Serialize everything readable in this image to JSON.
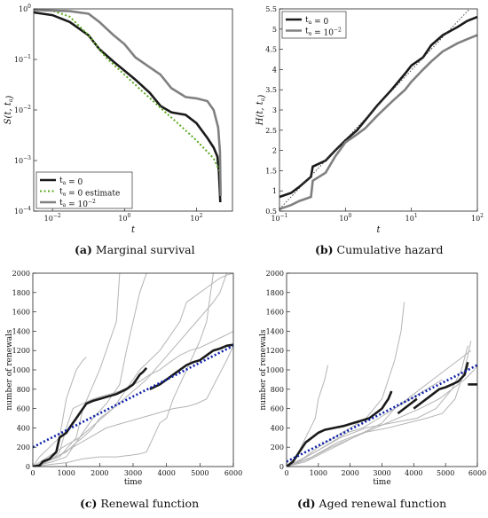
{
  "captions": {
    "a": {
      "letter": "(a)",
      "text": " Marginal survival"
    },
    "b": {
      "letter": "(b)",
      "text": " Cumulative hazard"
    },
    "c": {
      "letter": "(c)",
      "text": " Renewal function"
    },
    "d": {
      "letter": "(d)",
      "text": " Aged renewal function"
    }
  },
  "colors": {
    "black": "#1a1a1a",
    "gray": "#808080",
    "green": "#5aaa1e",
    "blue": "#0a1ea8",
    "light": "#b4b4b4"
  },
  "chart_data": [
    {
      "id": "a",
      "type": "line",
      "xlabel": "t",
      "ylabel": "S(t, t_a)",
      "xscale": "log",
      "yscale": "log",
      "xlim": [
        0.003,
        1000
      ],
      "ylim": [
        0.0001,
        1
      ],
      "xticks": [
        {
          "v": 0.01,
          "label": "10^-2"
        },
        {
          "v": 1,
          "label": "10^0"
        },
        {
          "v": 100,
          "label": "10^2"
        }
      ],
      "yticks": [
        {
          "v": 0.0001,
          "label": "10^-4"
        },
        {
          "v": 0.001,
          "label": "10^-3"
        },
        {
          "v": 0.01,
          "label": "10^-2"
        },
        {
          "v": 0.1,
          "label": "10^-1"
        },
        {
          "v": 1,
          "label": "10^0"
        }
      ],
      "legend_position": "bottom-left",
      "series": [
        {
          "name": "t_a = 0",
          "style": "black",
          "x": [
            0.003,
            0.01,
            0.03,
            0.1,
            0.2,
            0.5,
            1,
            2,
            5,
            10,
            20,
            50,
            100,
            200,
            300,
            380,
            420,
            460
          ],
          "y": [
            0.85,
            0.75,
            0.55,
            0.3,
            0.16,
            0.09,
            0.06,
            0.04,
            0.022,
            0.012,
            0.009,
            0.008,
            0.0055,
            0.0028,
            0.0018,
            0.0012,
            0.0006,
            0.00015
          ]
        },
        {
          "name": "t_a = 0 estimate",
          "style": "green-dotted",
          "x": [
            0.003,
            0.01,
            0.03,
            0.1,
            0.3,
            1,
            3,
            10,
            30,
            100,
            300,
            450
          ],
          "y": [
            0.95,
            0.92,
            0.7,
            0.3,
            0.11,
            0.05,
            0.024,
            0.011,
            0.0055,
            0.0025,
            0.0011,
            0.0006
          ]
        },
        {
          "name": "t_a = 10^-2",
          "style": "gray",
          "x": [
            0.003,
            0.03,
            0.1,
            0.2,
            0.5,
            1,
            2,
            5,
            10,
            20,
            50,
            100,
            200,
            300,
            400,
            450,
            470
          ],
          "y": [
            0.95,
            0.9,
            0.8,
            0.55,
            0.3,
            0.2,
            0.11,
            0.07,
            0.05,
            0.027,
            0.018,
            0.017,
            0.015,
            0.01,
            0.0045,
            0.0015,
            0.0002
          ]
        }
      ],
      "legend": [
        "t_a = 0",
        "t_a = 0 estimate",
        "t_a = 10^-2"
      ]
    },
    {
      "id": "b",
      "type": "line",
      "xlabel": "t",
      "ylabel": "H(t, t_a)",
      "xscale": "log",
      "yscale": "linear",
      "xlim": [
        0.1,
        100
      ],
      "ylim": [
        0.5,
        5.5
      ],
      "xticks": [
        {
          "v": 0.1,
          "label": "10^-1"
        },
        {
          "v": 1,
          "label": "10^0"
        },
        {
          "v": 10,
          "label": "10^1"
        },
        {
          "v": 100,
          "label": "10^2"
        }
      ],
      "yticks": [
        {
          "v": 0.5,
          "label": "0.5"
        },
        {
          "v": 1,
          "label": "1"
        },
        {
          "v": 1.5,
          "label": "1.5"
        },
        {
          "v": 2,
          "label": "2"
        },
        {
          "v": 2.5,
          "label": "2.5"
        },
        {
          "v": 3,
          "label": "3"
        },
        {
          "v": 3.5,
          "label": "3.5"
        },
        {
          "v": 4,
          "label": "4"
        },
        {
          "v": 4.5,
          "label": "4.5"
        },
        {
          "v": 5,
          "label": "5"
        },
        {
          "v": 5.5,
          "label": "5.5"
        }
      ],
      "legend_position": "top-left",
      "series": [
        {
          "name": "t_a = 0",
          "style": "black",
          "x": [
            0.1,
            0.15,
            0.2,
            0.3,
            0.32,
            0.5,
            0.7,
            1,
            1.5,
            2,
            3,
            5,
            8,
            10,
            15,
            20,
            30,
            50,
            70,
            100
          ],
          "y": [
            0.85,
            0.95,
            1.1,
            1.35,
            1.6,
            1.75,
            2.0,
            2.25,
            2.5,
            2.75,
            3.1,
            3.5,
            3.9,
            4.1,
            4.3,
            4.6,
            4.85,
            5.05,
            5.2,
            5.3
          ]
        },
        {
          "name": "t_a = 10^-2",
          "style": "gray",
          "x": [
            0.1,
            0.15,
            0.2,
            0.3,
            0.32,
            0.5,
            0.7,
            1,
            1.5,
            2,
            3,
            5,
            8,
            10,
            15,
            20,
            30,
            50,
            70,
            100
          ],
          "y": [
            0.55,
            0.65,
            0.75,
            0.85,
            1.25,
            1.45,
            1.85,
            2.2,
            2.4,
            2.55,
            2.85,
            3.2,
            3.5,
            3.7,
            4.0,
            4.2,
            4.45,
            4.65,
            4.75,
            4.85
          ]
        },
        {
          "name": "",
          "style": "gray-dotted",
          "x": [
            0.1,
            100
          ],
          "y": [
            0.55,
            5.7
          ]
        }
      ],
      "legend": [
        "t_a = 0",
        "t_a = 10^-2"
      ]
    },
    {
      "id": "c",
      "type": "line",
      "xlabel": "time",
      "ylabel": "number of renewals",
      "xlim": [
        0,
        6000
      ],
      "ylim": [
        0,
        2000
      ],
      "xticks": [
        0,
        1000,
        2000,
        3000,
        4000,
        5000,
        6000
      ],
      "yticks": [
        0,
        200,
        400,
        600,
        800,
        1000,
        1200,
        1400,
        1600,
        1800,
        2000
      ],
      "gray_paths": [
        {
          "x": [
            0,
            300,
            600,
            800,
            1000,
            1200,
            1500,
            1800,
            2000,
            2300,
            2600,
            2900,
            3200,
            3500,
            3800,
            4100,
            4400,
            4700,
            5000,
            5300,
            5600,
            5900,
            6000
          ],
          "y": [
            0,
            30,
            80,
            150,
            400,
            600,
            650,
            700,
            720,
            750,
            780,
            830,
            880,
            950,
            1000,
            1080,
            1150,
            1200,
            1230,
            1280,
            1330,
            1380,
            1400
          ]
        },
        {
          "x": [
            0,
            200,
            500,
            800,
            900,
            1000,
            1100,
            1200,
            1300,
            1400,
            1500,
            1600
          ],
          "y": [
            0,
            100,
            200,
            300,
            500,
            700,
            800,
            900,
            1000,
            1050,
            1100,
            1130
          ]
        },
        {
          "x": [
            0,
            400,
            700,
            1000,
            1300,
            1500,
            1800,
            2000,
            2200,
            2400,
            2600,
            2800,
            3000,
            3200,
            3500,
            3800,
            4000,
            4200,
            4400,
            4500,
            4600,
            4800,
            5000,
            5200,
            5400,
            5600,
            5800,
            6000
          ],
          "y": [
            0,
            50,
            100,
            150,
            250,
            300,
            400,
            500,
            550,
            600,
            700,
            800,
            900,
            1000,
            1100,
            1200,
            1300,
            1400,
            1500,
            1600,
            1700,
            1750,
            1800,
            1850,
            1900,
            1950,
            1980,
            2000
          ]
        },
        {
          "x": [
            0,
            500,
            1000,
            1500,
            2000,
            2500,
            3000,
            3200,
            3400,
            3600,
            3800,
            4000,
            4200,
            4400,
            4600,
            4800,
            5000,
            5200,
            5400
          ],
          "y": [
            0,
            20,
            40,
            80,
            100,
            100,
            120,
            130,
            150,
            300,
            450,
            500,
            700,
            850,
            1000,
            1150,
            1300,
            1500,
            2000
          ]
        },
        {
          "x": [
            0,
            600,
            1000,
            1400,
            1800,
            2200,
            2600,
            2800,
            3000,
            3200,
            3400
          ],
          "y": [
            0,
            50,
            100,
            300,
            500,
            650,
            850,
            1200,
            1500,
            1800,
            2000
          ]
        },
        {
          "x": [
            0,
            700,
            1200,
            1700,
            2200,
            2700,
            3200,
            3700,
            4200,
            4600,
            4900,
            5200,
            5500,
            5800,
            6000
          ],
          "y": [
            0,
            100,
            200,
            300,
            400,
            450,
            500,
            550,
            600,
            620,
            650,
            700,
            900,
            1100,
            1250
          ]
        },
        {
          "x": [
            0,
            800,
            1300,
            1500,
            2000,
            2500,
            2600
          ],
          "y": [
            0,
            100,
            300,
            600,
            1000,
            1500,
            2000
          ]
        },
        {
          "x": [
            0,
            900,
            1400,
            1900,
            2400,
            2900,
            3400,
            3900,
            4400,
            4900,
            5400,
            5600,
            5700,
            5800
          ],
          "y": [
            0,
            200,
            300,
            450,
            600,
            750,
            900,
            1100,
            1300,
            1500,
            1700,
            1800,
            1900,
            2000
          ]
        }
      ],
      "black_segments": [
        {
          "x": [
            0,
            200,
            300,
            500,
            700,
            800,
            1000,
            1100,
            1200,
            1300,
            1400,
            1500,
            1600,
            1800,
            2000,
            2200,
            2500,
            2800,
            3000,
            3100,
            3200,
            3300,
            3400
          ],
          "y": [
            0,
            10,
            50,
            80,
            150,
            300,
            350,
            400,
            450,
            500,
            550,
            600,
            650,
            680,
            700,
            720,
            750,
            800,
            850,
            900,
            950,
            980,
            1020
          ]
        },
        {
          "x": [
            3500,
            3800,
            4000,
            4200,
            4400,
            4600,
            4800,
            5000,
            5200,
            5400,
            5600,
            5800,
            6000
          ],
          "y": [
            800,
            850,
            900,
            950,
            1000,
            1050,
            1080,
            1100,
            1150,
            1200,
            1220,
            1250,
            1260
          ]
        }
      ],
      "fit_line": {
        "x": [
          0,
          6000
        ],
        "y": [
          200,
          1250
        ]
      }
    },
    {
      "id": "d",
      "type": "line",
      "xlabel": "time",
      "ylabel": "number of renewals",
      "xlim": [
        0,
        6000
      ],
      "ylim": [
        0,
        2000
      ],
      "xticks": [
        0,
        1000,
        2000,
        3000,
        4000,
        5000,
        6000
      ],
      "yticks": [
        0,
        200,
        400,
        600,
        800,
        1000,
        1200,
        1400,
        1600,
        1800,
        2000
      ],
      "gray_paths": [
        {
          "x": [
            0,
            300,
            600,
            900,
            1000,
            1100,
            1200,
            1300
          ],
          "y": [
            0,
            100,
            300,
            500,
            700,
            800,
            900,
            1050
          ]
        },
        {
          "x": [
            0,
            500,
            1000,
            1500,
            2000,
            2500,
            3000,
            3200,
            3400,
            3600,
            3700
          ],
          "y": [
            0,
            80,
            200,
            300,
            400,
            500,
            700,
            900,
            1100,
            1400,
            1700
          ]
        },
        {
          "x": [
            0,
            600,
            1200,
            1800,
            2400,
            3000,
            3400,
            3800,
            4200,
            4600,
            5000,
            5400,
            5800
          ],
          "y": [
            0,
            50,
            150,
            250,
            350,
            450,
            600,
            700,
            800,
            900,
            1000,
            1100,
            1200
          ]
        },
        {
          "x": [
            0,
            700,
            1400,
            2100,
            2800,
            3500,
            4200,
            4800,
            5200,
            5600,
            5900,
            6000
          ],
          "y": [
            0,
            80,
            200,
            300,
            400,
            500,
            600,
            700,
            800,
            900,
            1000,
            1050
          ]
        },
        {
          "x": [
            0,
            800,
            1600,
            2400,
            3200,
            3800,
            4400,
            4900,
            5300,
            5600,
            5800
          ],
          "y": [
            0,
            100,
            250,
            350,
            400,
            450,
            500,
            550,
            700,
            1000,
            1300
          ]
        },
        {
          "x": [
            0,
            900,
            1700,
            2500,
            3300,
            4100,
            4700,
            5200,
            5500,
            5700
          ],
          "y": [
            0,
            150,
            300,
            400,
            450,
            500,
            600,
            800,
            1000,
            1250
          ]
        },
        {
          "x": [
            0,
            400,
            900,
            1400,
            1900,
            2400,
            2900,
            3400,
            3900,
            4400,
            4900
          ],
          "y": [
            0,
            60,
            150,
            250,
            350,
            400,
            500,
            600,
            700,
            800,
            900
          ]
        }
      ],
      "black_segments": [
        {
          "x": [
            0,
            200,
            400,
            600,
            800,
            1000,
            1200,
            1500,
            1800,
            2000,
            2200,
            2400,
            2600,
            2800,
            3000,
            3100,
            3200,
            3300
          ],
          "y": [
            0,
            50,
            150,
            250,
            300,
            350,
            380,
            400,
            420,
            440,
            460,
            480,
            500,
            550,
            600,
            650,
            700,
            780
          ]
        },
        {
          "x": [
            3500,
            3700,
            3900,
            4100
          ],
          "y": [
            550,
            600,
            650,
            700
          ]
        },
        {
          "x": [
            4000,
            4200,
            4400,
            4600,
            4800,
            5000,
            5200,
            5400,
            5600,
            5700
          ],
          "y": [
            600,
            650,
            700,
            750,
            800,
            820,
            850,
            880,
            950,
            1080
          ]
        },
        {
          "x": [
            5700,
            6000
          ],
          "y": [
            850,
            850
          ]
        }
      ],
      "fit_line": {
        "x": [
          0,
          6000
        ],
        "y": [
          50,
          1050
        ]
      }
    }
  ]
}
